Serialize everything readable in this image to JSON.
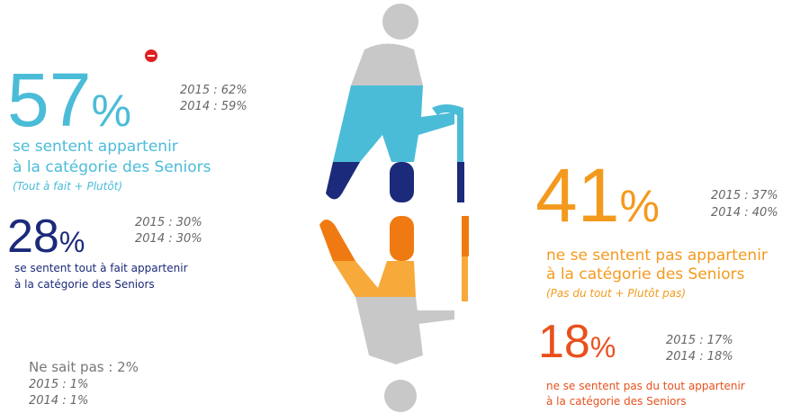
{
  "left": {
    "main": {
      "value": "57",
      "unit": "%",
      "history": [
        "2015 : 62%",
        "2014 : 59%"
      ],
      "label": [
        "se sentent appartenir",
        "à la catégorie des Seniors"
      ],
      "note": "(Tout à fait + Plutôt)"
    },
    "sub": {
      "value": "28",
      "unit": "%",
      "history": [
        "2015 : 30%",
        "2014 : 30%"
      ],
      "label": [
        "se sentent tout à fait appartenir",
        "à la catégorie des Seniors"
      ]
    },
    "unknown": {
      "label": "Ne sait pas : 2%",
      "history": [
        "2015 : 1%",
        "2014 : 1%"
      ]
    }
  },
  "right": {
    "main": {
      "value": "41",
      "unit": "%",
      "history": [
        "2015 : 37%",
        "2014 : 40%"
      ],
      "label": [
        "ne se sentent pas appartenir",
        "à la catégorie des Seniors"
      ],
      "note": "(Pas du tout + Plutôt pas)"
    },
    "sub": {
      "value": "18",
      "unit": "%",
      "history": [
        "2015 : 17%",
        "2014 : 18%"
      ],
      "label": [
        "ne se sentent pas du tout appartenir",
        "à la catégorie des Seniors"
      ]
    }
  }
}
